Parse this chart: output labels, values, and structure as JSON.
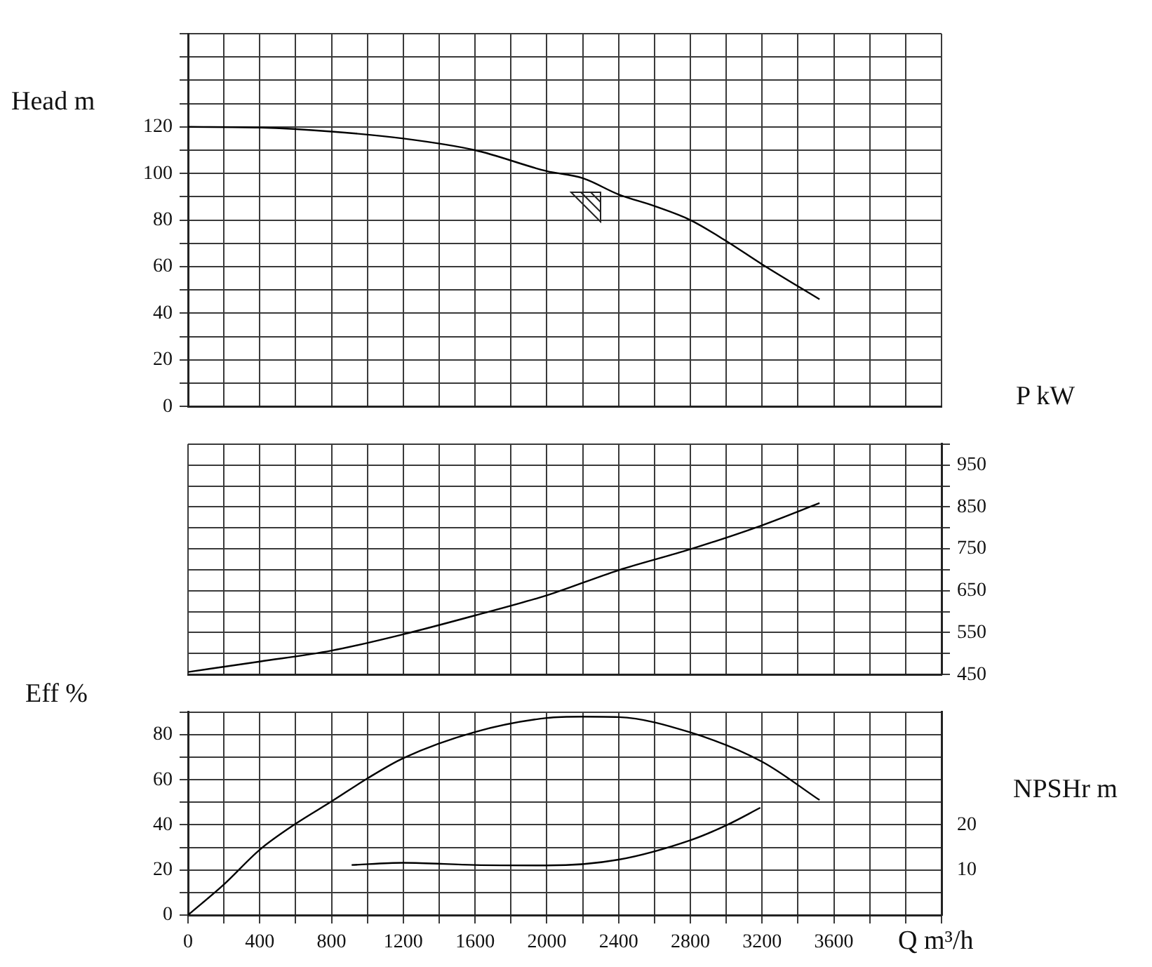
{
  "chart_data": [
    {
      "type": "line",
      "ylabel": "Head m",
      "xlim": [
        0,
        4200
      ],
      "xticks": [
        0,
        {
          "value": 200,
          "label": null
        },
        400,
        {
          "value": 600,
          "label": null
        },
        800,
        {
          "value": 1000,
          "label": null
        },
        1200,
        {
          "value": 1400,
          "label": null
        },
        1600,
        {
          "value": 1800,
          "label": null
        },
        2000,
        {
          "value": 2200,
          "label": null
        },
        2400,
        {
          "value": 2600,
          "label": null
        },
        2800,
        {
          "value": 3000,
          "label": null
        },
        3200,
        {
          "value": 3400,
          "label": null
        },
        3600,
        {
          "value": 3800,
          "label": null
        },
        {
          "value": 4000,
          "label": null
        },
        {
          "value": 4200,
          "label": null
        }
      ],
      "ylim": [
        0,
        160
      ],
      "yticks": [
        0,
        {
          "value": 10,
          "label": null
        },
        20,
        {
          "value": 30,
          "label": null
        },
        40,
        {
          "value": 50,
          "label": null
        },
        60,
        {
          "value": 70,
          "label": null
        },
        80,
        {
          "value": 90,
          "label": null
        },
        100,
        {
          "value": 110,
          "label": null
        },
        120,
        {
          "value": 130,
          "label": null
        },
        {
          "value": 140,
          "label": null
        },
        {
          "value": 150,
          "label": null
        },
        {
          "value": 160,
          "label": null
        }
      ],
      "grid": true,
      "tick_labels": "y",
      "marker": "none",
      "series": [
        {
          "color": "#000000",
          "x": [
            0,
            400,
            800,
            1200,
            1600,
            2000,
            2200,
            2400,
            2600,
            2800,
            3000,
            3200,
            3520
          ],
          "values": [
            120,
            119.7,
            118,
            115,
            110,
            101,
            98,
            91,
            86,
            80,
            71,
            61,
            46
          ]
        }
      ]
    },
    {
      "type": "line",
      "ylabel": "P kW",
      "xlim": [
        0,
        4200
      ],
      "xticks": [
        0,
        {
          "value": 200,
          "label": null
        },
        400,
        {
          "value": 600,
          "label": null
        },
        800,
        {
          "value": 1000,
          "label": null
        },
        1200,
        {
          "value": 1400,
          "label": null
        },
        1600,
        {
          "value": 1800,
          "label": null
        },
        2000,
        {
          "value": 2200,
          "label": null
        },
        2400,
        {
          "value": 2600,
          "label": null
        },
        2800,
        {
          "value": 3000,
          "label": null
        },
        3200,
        {
          "value": 3400,
          "label": null
        },
        3600,
        {
          "value": 3800,
          "label": null
        },
        {
          "value": 4000,
          "label": null
        },
        {
          "value": 4200,
          "label": null
        }
      ],
      "ylim": [
        450,
        1000
      ],
      "yticks": [
        450,
        {
          "value": 500,
          "label": null
        },
        550,
        {
          "value": 600,
          "label": null
        },
        650,
        {
          "value": 700,
          "label": null
        },
        750,
        {
          "value": 800,
          "label": null
        },
        850,
        {
          "value": 900,
          "label": null
        },
        950,
        {
          "value": 1000,
          "label": null
        }
      ],
      "grid": true,
      "tick_labels": "y",
      "marker": "none",
      "series": [
        {
          "color": "#000000",
          "x": [
            0,
            400,
            800,
            1200,
            1600,
            2000,
            2400,
            2800,
            3200,
            3520
          ],
          "values": [
            456,
            481,
            507,
            546,
            591,
            639,
            699,
            749,
            806,
            859
          ]
        }
      ]
    },
    {
      "type": "line",
      "ylabel": "Eff %",
      "y2label": "NPSHr m",
      "xlabel": "Q m³/h",
      "xlim": [
        0,
        4200
      ],
      "xticks": [
        0,
        {
          "value": 200,
          "label": null
        },
        400,
        {
          "value": 600,
          "label": null
        },
        800,
        {
          "value": 1000,
          "label": null
        },
        1200,
        {
          "value": 1400,
          "label": null
        },
        1600,
        {
          "value": 1800,
          "label": null
        },
        2000,
        {
          "value": 2200,
          "label": null
        },
        2400,
        {
          "value": 2600,
          "label": null
        },
        2800,
        {
          "value": 3000,
          "label": null
        },
        3200,
        {
          "value": 3400,
          "label": null
        },
        3600,
        {
          "value": 3800,
          "label": null
        },
        {
          "value": 4000,
          "label": null
        },
        {
          "value": 4200,
          "label": null
        }
      ],
      "ylim": [
        0,
        90
      ],
      "yticks": [
        0,
        {
          "value": 10,
          "label": null
        },
        20,
        {
          "value": 30,
          "label": null
        },
        40,
        {
          "value": 50,
          "label": null
        },
        60,
        {
          "value": 70,
          "label": null
        },
        80,
        {
          "value": 90,
          "label": null
        }
      ],
      "y2lim": [
        0,
        45
      ],
      "y2ticks": [
        10,
        20
      ],
      "grid": true,
      "marker": "none",
      "series": [
        {
          "color": "#000000",
          "x": [
            0,
            200,
            400,
            600,
            800,
            1000,
            1200,
            1600,
            2000,
            2200,
            2400,
            2800,
            3200,
            3520
          ],
          "values": [
            0,
            13.6,
            29,
            40.5,
            50.4,
            60.6,
            69.6,
            81.2,
            87.4,
            88,
            87.8,
            81,
            68,
            51
          ]
        },
        {
          "color": "#000000",
          "axis": "y2",
          "x": [
            912,
            1200,
            1600,
            2000,
            2400,
            2800,
            3000,
            3190
          ],
          "values": [
            11.1,
            11.6,
            11.1,
            11,
            12.3,
            16.6,
            19.9,
            23.8
          ]
        }
      ]
    }
  ]
}
